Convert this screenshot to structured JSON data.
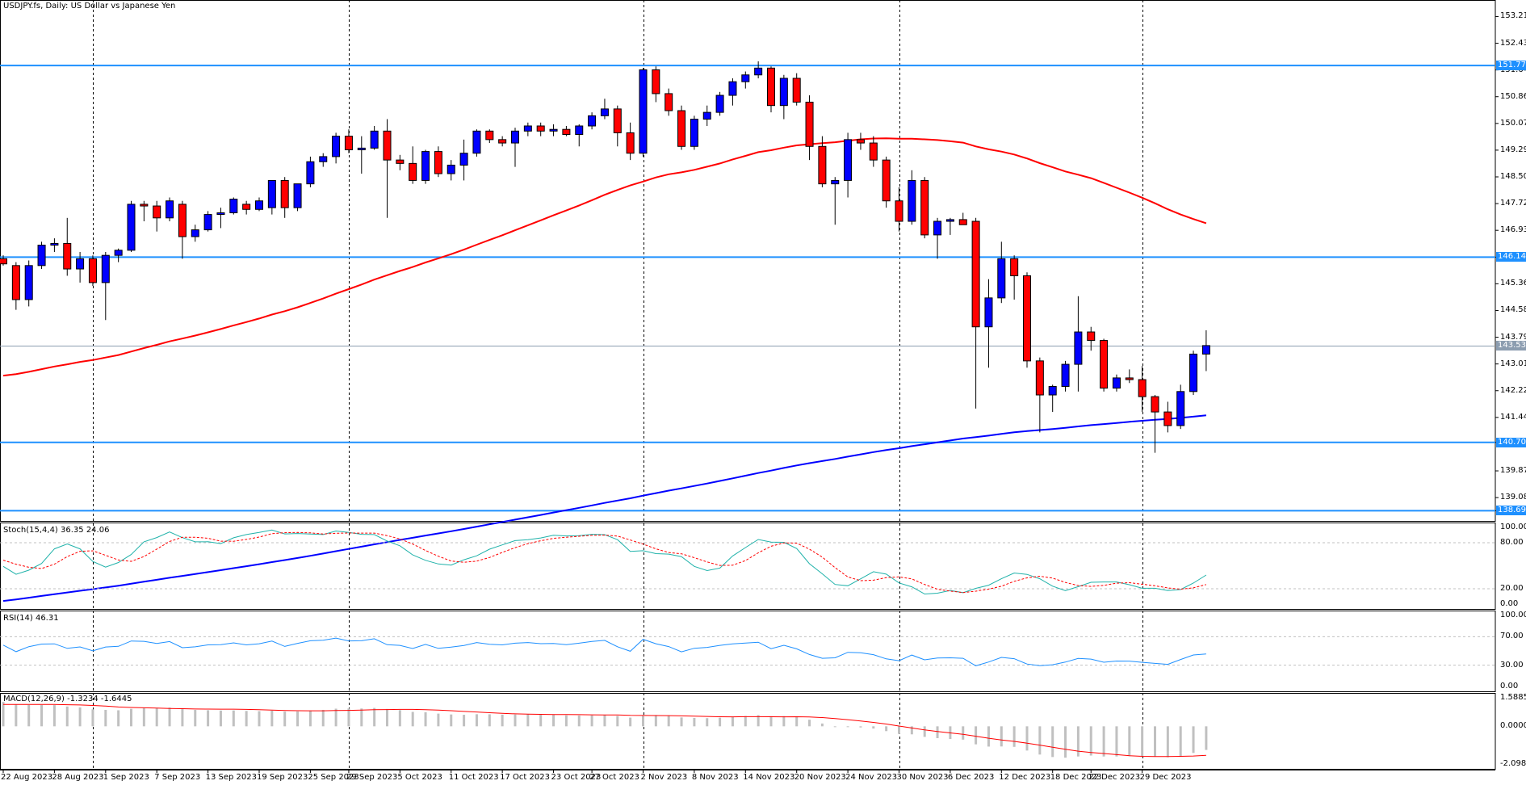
{
  "header": {
    "symbol_title": "USDJPY.fs, Daily:  US Dollar vs Japanese Yen"
  },
  "price_panel": {
    "y_ticks": [
      "153.215",
      "152.430",
      "151.645",
      "150.860",
      "150.075",
      "149.290",
      "148.505",
      "147.720",
      "146.935",
      "146.147",
      "145.365",
      "144.580",
      "143.795",
      "143.010",
      "142.225",
      "141.440",
      "140.706",
      "139.870",
      "139.085",
      "138.698"
    ],
    "levels": [
      {
        "label": "151.776",
        "value": 151.776
      },
      {
        "label": "146.147",
        "value": 146.147
      },
      {
        "label": "140.706",
        "value": 140.706
      },
      {
        "label": "138.698",
        "value": 138.698
      }
    ],
    "current_price": {
      "label": "143.537",
      "value": 143.537
    }
  },
  "stoch_panel": {
    "title": "Stoch(15,4,4) 36.35 24.06",
    "y_ticks": [
      "100.00",
      "80.00",
      "20.00",
      "0.00"
    ]
  },
  "rsi_panel": {
    "title": "RSI(14) 46.31",
    "y_ticks": [
      "100.00",
      "70.00",
      "30.00",
      "0.00"
    ]
  },
  "macd_panel": {
    "title": "MACD(12,26,9) -1.3234 -1.6445",
    "y_ticks": [
      "1.5885",
      "0.0000",
      "-2.0982"
    ]
  },
  "x_ticks": [
    "22 Aug 2023",
    "28 Aug 2023",
    "1 Sep 2023",
    "7 Sep 2023",
    "13 Sep 2023",
    "19 Sep 2023",
    "25 Sep 2023",
    "29 Sep 2023",
    "5 Oct 2023",
    "11 Oct 2023",
    "17 Oct 2023",
    "23 Oct 2023",
    "27 Oct 2023",
    "2 Nov 2023",
    "8 Nov 2023",
    "14 Nov 2023",
    "20 Nov 2023",
    "24 Nov 2023",
    "30 Nov 2023",
    "6 Dec 2023",
    "12 Dec 2023",
    "18 Dec 2023",
    "22 Dec 2023",
    "29 Dec 2023"
  ],
  "colors": {
    "bull": "#0000ff",
    "bear": "#ff0000",
    "ma_fast": "#ff0000",
    "ma_slow": "#0000ff",
    "level_line": "#1e90ff",
    "stoch_main": "#20b2aa",
    "stoch_signal": "#ff0000",
    "rsi": "#1e90ff",
    "macd_hist": "#c0c0c0",
    "macd_signal": "#ff0000"
  },
  "chart_data": [
    {
      "type": "candlestick",
      "title": "USDJPY.fs, Daily:  US Dollar vs Japanese Yen",
      "ylim": [
        138.4,
        153.7
      ],
      "candles": [
        {
          "o": 146.1,
          "h": 146.2,
          "l": 145.9,
          "c": 145.95
        },
        {
          "o": 145.9,
          "h": 146.0,
          "l": 144.6,
          "c": 144.9
        },
        {
          "o": 144.9,
          "h": 146.05,
          "l": 144.7,
          "c": 145.9
        },
        {
          "o": 145.9,
          "h": 146.6,
          "l": 145.8,
          "c": 146.5
        },
        {
          "o": 146.5,
          "h": 146.7,
          "l": 146.3,
          "c": 146.55
        },
        {
          "o": 146.55,
          "h": 147.3,
          "l": 145.6,
          "c": 145.8
        },
        {
          "o": 145.8,
          "h": 146.3,
          "l": 145.4,
          "c": 146.1
        },
        {
          "o": 146.1,
          "h": 146.2,
          "l": 145.3,
          "c": 145.4
        },
        {
          "o": 145.4,
          "h": 146.3,
          "l": 144.3,
          "c": 146.2
        },
        {
          "o": 146.2,
          "h": 146.4,
          "l": 146.0,
          "c": 146.35
        },
        {
          "o": 146.35,
          "h": 147.8,
          "l": 146.3,
          "c": 147.7
        },
        {
          "o": 147.7,
          "h": 147.8,
          "l": 147.2,
          "c": 147.65
        },
        {
          "o": 147.65,
          "h": 147.8,
          "l": 146.9,
          "c": 147.3
        },
        {
          "o": 147.3,
          "h": 147.9,
          "l": 147.2,
          "c": 147.8
        },
        {
          "o": 147.7,
          "h": 147.8,
          "l": 146.1,
          "c": 146.75
        },
        {
          "o": 146.75,
          "h": 147.1,
          "l": 146.6,
          "c": 146.95
        },
        {
          "o": 146.95,
          "h": 147.5,
          "l": 146.9,
          "c": 147.4
        },
        {
          "o": 147.4,
          "h": 147.6,
          "l": 147.0,
          "c": 147.45
        },
        {
          "o": 147.45,
          "h": 147.9,
          "l": 147.4,
          "c": 147.85
        },
        {
          "o": 147.7,
          "h": 147.8,
          "l": 147.4,
          "c": 147.55
        },
        {
          "o": 147.55,
          "h": 147.9,
          "l": 147.5,
          "c": 147.8
        },
        {
          "o": 147.6,
          "h": 148.4,
          "l": 147.4,
          "c": 148.4
        },
        {
          "o": 148.4,
          "h": 148.5,
          "l": 147.3,
          "c": 147.6
        },
        {
          "o": 147.6,
          "h": 148.3,
          "l": 147.5,
          "c": 148.3
        },
        {
          "o": 148.3,
          "h": 149.1,
          "l": 148.2,
          "c": 148.95
        },
        {
          "o": 148.95,
          "h": 149.2,
          "l": 148.8,
          "c": 149.1
        },
        {
          "o": 149.1,
          "h": 149.8,
          "l": 148.9,
          "c": 149.7
        },
        {
          "o": 149.7,
          "h": 149.9,
          "l": 149.2,
          "c": 149.3
        },
        {
          "o": 149.3,
          "h": 149.7,
          "l": 148.6,
          "c": 149.35
        },
        {
          "o": 149.35,
          "h": 150.0,
          "l": 149.3,
          "c": 149.85
        },
        {
          "o": 149.85,
          "h": 150.2,
          "l": 147.3,
          "c": 149.0
        },
        {
          "o": 149.0,
          "h": 149.15,
          "l": 148.7,
          "c": 148.9
        },
        {
          "o": 148.9,
          "h": 149.4,
          "l": 148.3,
          "c": 148.4
        },
        {
          "o": 148.4,
          "h": 149.3,
          "l": 148.3,
          "c": 149.25
        },
        {
          "o": 149.25,
          "h": 149.4,
          "l": 148.5,
          "c": 148.6
        },
        {
          "o": 148.6,
          "h": 149.0,
          "l": 148.4,
          "c": 148.85
        },
        {
          "o": 148.85,
          "h": 149.6,
          "l": 148.4,
          "c": 149.2
        },
        {
          "o": 149.2,
          "h": 149.9,
          "l": 149.1,
          "c": 149.85
        },
        {
          "o": 149.85,
          "h": 149.9,
          "l": 149.5,
          "c": 149.6
        },
        {
          "o": 149.6,
          "h": 149.7,
          "l": 149.4,
          "c": 149.5
        },
        {
          "o": 149.5,
          "h": 149.95,
          "l": 148.8,
          "c": 149.85
        },
        {
          "o": 149.85,
          "h": 150.1,
          "l": 149.7,
          "c": 150.0
        },
        {
          "o": 150.0,
          "h": 150.1,
          "l": 149.7,
          "c": 149.85
        },
        {
          "o": 149.85,
          "h": 150.05,
          "l": 149.7,
          "c": 149.9
        },
        {
          "o": 149.9,
          "h": 150.0,
          "l": 149.7,
          "c": 149.75
        },
        {
          "o": 149.75,
          "h": 150.05,
          "l": 149.4,
          "c": 150.0
        },
        {
          "o": 150.0,
          "h": 150.4,
          "l": 149.9,
          "c": 150.3
        },
        {
          "o": 150.3,
          "h": 150.8,
          "l": 150.2,
          "c": 150.5
        },
        {
          "o": 150.5,
          "h": 150.6,
          "l": 149.4,
          "c": 149.8
        },
        {
          "o": 149.8,
          "h": 150.1,
          "l": 149.0,
          "c": 149.2
        },
        {
          "o": 149.2,
          "h": 151.7,
          "l": 149.1,
          "c": 151.65
        },
        {
          "o": 151.65,
          "h": 151.75,
          "l": 150.7,
          "c": 150.95
        },
        {
          "o": 150.95,
          "h": 151.1,
          "l": 150.3,
          "c": 150.45
        },
        {
          "o": 150.45,
          "h": 150.6,
          "l": 149.3,
          "c": 149.4
        },
        {
          "o": 149.4,
          "h": 150.3,
          "l": 149.3,
          "c": 150.2
        },
        {
          "o": 150.2,
          "h": 150.6,
          "l": 150.0,
          "c": 150.4
        },
        {
          "o": 150.4,
          "h": 151.0,
          "l": 150.3,
          "c": 150.9
        },
        {
          "o": 150.9,
          "h": 151.4,
          "l": 150.6,
          "c": 151.3
        },
        {
          "o": 151.3,
          "h": 151.6,
          "l": 151.1,
          "c": 151.5
        },
        {
          "o": 151.5,
          "h": 151.9,
          "l": 151.4,
          "c": 151.7
        },
        {
          "o": 151.7,
          "h": 151.75,
          "l": 150.4,
          "c": 150.6
        },
        {
          "o": 150.6,
          "h": 151.5,
          "l": 150.2,
          "c": 151.4
        },
        {
          "o": 151.4,
          "h": 151.55,
          "l": 150.6,
          "c": 150.7
        },
        {
          "o": 150.7,
          "h": 150.9,
          "l": 149.0,
          "c": 149.4
        },
        {
          "o": 149.4,
          "h": 149.7,
          "l": 148.2,
          "c": 148.3
        },
        {
          "o": 148.3,
          "h": 148.5,
          "l": 147.1,
          "c": 148.4
        },
        {
          "o": 148.4,
          "h": 149.8,
          "l": 147.9,
          "c": 149.6
        },
        {
          "o": 149.6,
          "h": 149.8,
          "l": 149.3,
          "c": 149.5
        },
        {
          "o": 149.5,
          "h": 149.7,
          "l": 148.8,
          "c": 149.0
        },
        {
          "o": 149.0,
          "h": 149.1,
          "l": 147.6,
          "c": 147.8
        },
        {
          "o": 147.8,
          "h": 148.2,
          "l": 146.9,
          "c": 147.2
        },
        {
          "o": 147.2,
          "h": 148.7,
          "l": 147.1,
          "c": 148.4
        },
        {
          "o": 148.4,
          "h": 148.5,
          "l": 146.7,
          "c": 146.8
        },
        {
          "o": 146.8,
          "h": 147.3,
          "l": 146.1,
          "c": 147.2
        },
        {
          "o": 147.2,
          "h": 147.3,
          "l": 146.8,
          "c": 147.25
        },
        {
          "o": 147.25,
          "h": 147.45,
          "l": 147.1,
          "c": 147.1
        },
        {
          "o": 147.2,
          "h": 147.3,
          "l": 141.7,
          "c": 144.1
        },
        {
          "o": 144.1,
          "h": 145.5,
          "l": 142.9,
          "c": 144.95
        },
        {
          "o": 144.95,
          "h": 146.6,
          "l": 144.8,
          "c": 146.1
        },
        {
          "o": 146.1,
          "h": 146.2,
          "l": 144.9,
          "c": 145.6
        },
        {
          "o": 145.6,
          "h": 145.7,
          "l": 142.9,
          "c": 143.1
        },
        {
          "o": 143.1,
          "h": 143.2,
          "l": 141.0,
          "c": 142.1
        },
        {
          "o": 142.1,
          "h": 142.4,
          "l": 141.6,
          "c": 142.35
        },
        {
          "o": 142.35,
          "h": 143.1,
          "l": 142.2,
          "c": 143.0
        },
        {
          "o": 143.0,
          "h": 145.0,
          "l": 142.2,
          "c": 143.95
        },
        {
          "o": 143.95,
          "h": 144.1,
          "l": 143.4,
          "c": 143.7
        },
        {
          "o": 143.7,
          "h": 143.75,
          "l": 142.2,
          "c": 142.3
        },
        {
          "o": 142.3,
          "h": 142.7,
          "l": 142.2,
          "c": 142.6
        },
        {
          "o": 142.6,
          "h": 142.85,
          "l": 142.45,
          "c": 142.55
        },
        {
          "o": 142.55,
          "h": 142.95,
          "l": 141.6,
          "c": 142.05
        },
        {
          "o": 142.05,
          "h": 142.1,
          "l": 140.4,
          "c": 141.6
        },
        {
          "o": 141.6,
          "h": 141.9,
          "l": 141.0,
          "c": 141.2
        },
        {
          "o": 141.2,
          "h": 142.4,
          "l": 141.1,
          "c": 142.2
        },
        {
          "o": 142.2,
          "h": 143.4,
          "l": 142.1,
          "c": 143.3
        },
        {
          "o": 143.3,
          "h": 144.0,
          "l": 142.8,
          "c": 143.55
        }
      ]
    }
  ]
}
